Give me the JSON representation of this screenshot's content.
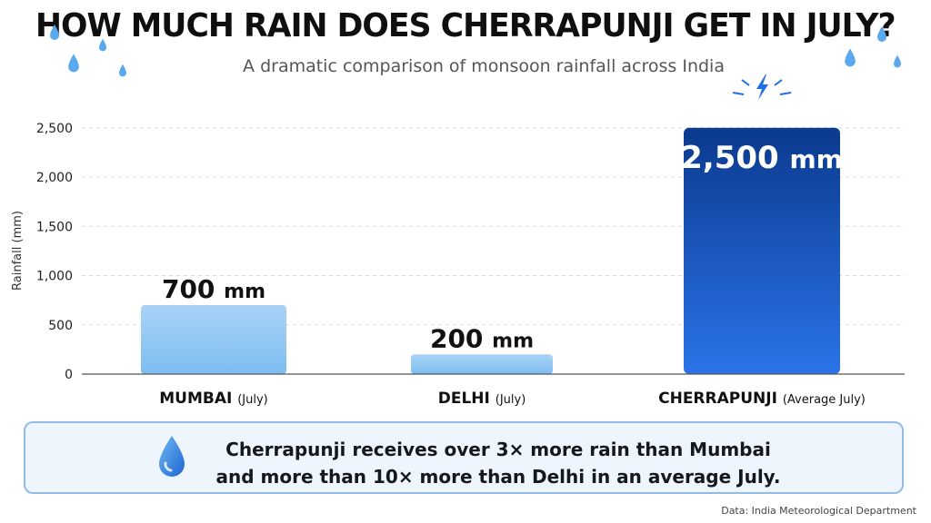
{
  "header": {
    "title": "HOW MUCH RAIN DOES CHERRAPUNJI GET IN JULY?",
    "subtitle": "A dramatic comparison of monsoon rainfall across India"
  },
  "chart_data": {
    "type": "bar",
    "ylabel": "Rainfall (mm)",
    "xlabel": "",
    "ylim": [
      0,
      2700
    ],
    "yticks": [
      0,
      500,
      1000,
      1500,
      2000,
      2500
    ],
    "ytick_labels": [
      "0",
      "500",
      "1,000",
      "1,500",
      "2,000",
      "2,500"
    ],
    "grid": true,
    "categories": [
      {
        "name": "MUMBAI",
        "period": "(July)"
      },
      {
        "name": "DELHI",
        "period": "(July)"
      },
      {
        "name": "CHERRAPUNJI",
        "period": "(Average July)"
      }
    ],
    "values": [
      700,
      200,
      2500
    ],
    "value_labels": [
      {
        "number": "700",
        "unit": "mm"
      },
      {
        "number": "200",
        "unit": "mm"
      },
      {
        "number": "2,500",
        "unit": "mm"
      }
    ],
    "colors": {
      "light_bar_top": "#a9d3f6",
      "light_bar_bottom": "#7dbdf0",
      "dark_bar_top": "#0b3a8e",
      "dark_bar_bottom": "#2a73e8",
      "accent": "#1f6fe0"
    }
  },
  "callout": {
    "line1": "Cherrapunji receives over 3× more rain than Mumbai",
    "line2": "and more than 10× more than Delhi in an average July.",
    "icon": "water-drop-icon"
  },
  "source": "Data: India Meteorological Department"
}
